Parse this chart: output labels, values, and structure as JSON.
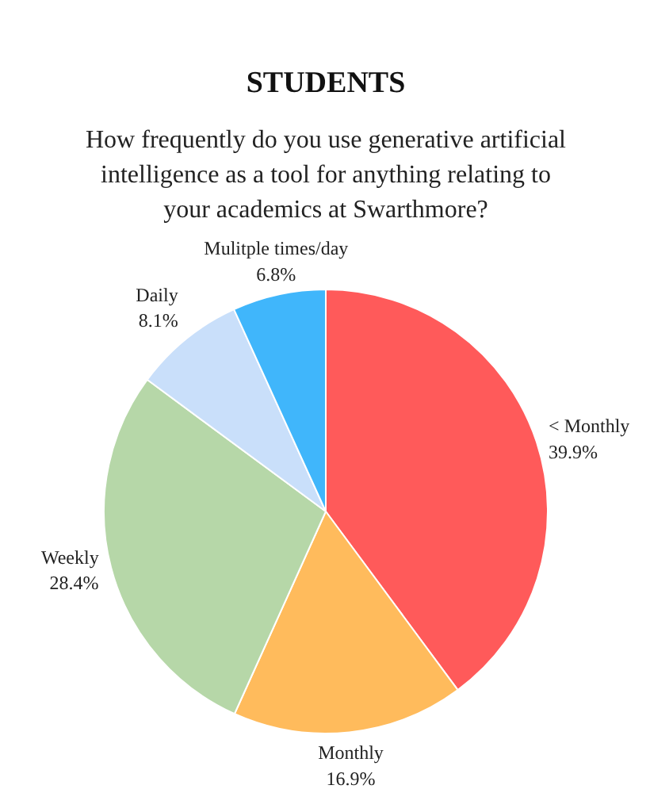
{
  "chart_data": {
    "type": "pie",
    "title": "STUDENTS",
    "subtitle": "How frequently do you use generative artificial intelligence as a tool for anything relating to your academics at Swarthmore?",
    "categories": [
      "< Monthly",
      "Monthly",
      "Weekly",
      "Daily",
      "Mulitple times/day"
    ],
    "values": [
      39.9,
      16.9,
      28.4,
      8.1,
      6.8
    ],
    "value_labels": [
      "39.9%",
      "16.9%",
      "28.4%",
      "8.1%",
      "6.8%"
    ],
    "colors": [
      "#ff5a5a",
      "#ffbb5c",
      "#b6d7a8",
      "#c9dffa",
      "#40b6fb"
    ]
  }
}
